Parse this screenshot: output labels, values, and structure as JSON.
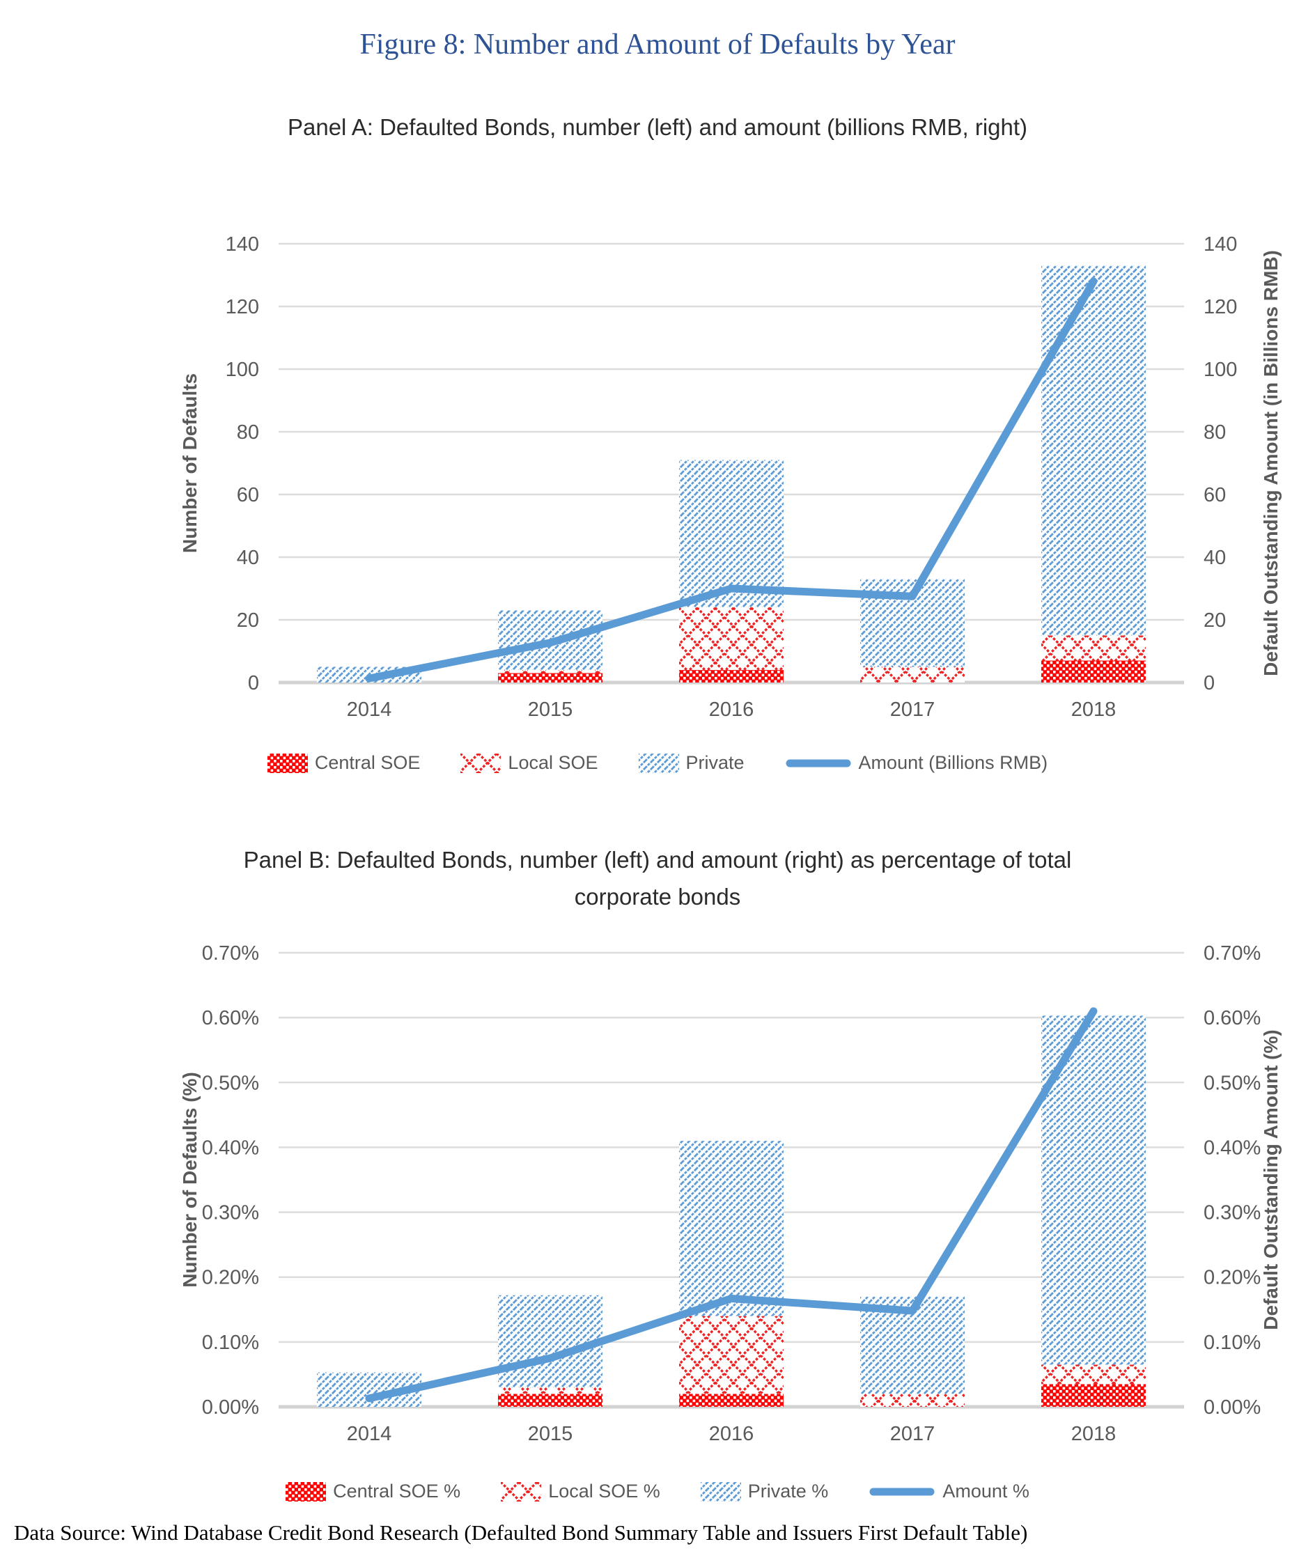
{
  "figure_title": "Figure 8: Number and Amount of Defaults by Year",
  "source_note": "Data Source: Wind Database Credit Bond Research (Defaulted Bond Summary Table and Issuers First Default Table)",
  "colors": {
    "title_blue": "#2E5395",
    "line_blue": "#5B9BD5",
    "hatch_blue": "#5B9BD5",
    "central_red": "#FF0000",
    "local_red": "#EE2222",
    "grid_gray": "#DCDCDC",
    "axis_text_gray": "#595959"
  },
  "chart_data": [
    {
      "type": "bar",
      "stacked": true,
      "grid": true,
      "legend_position": "bottom",
      "panel_title": "Panel A: Defaulted Bonds, number (left) and amount (billions RMB, right)",
      "categories": [
        "2014",
        "2015",
        "2016",
        "2017",
        "2018"
      ],
      "series": [
        {
          "name": "Central SOE",
          "pattern": "central",
          "values": [
            0,
            3,
            4,
            0,
            7
          ]
        },
        {
          "name": "Local SOE",
          "pattern": "local",
          "values": [
            0,
            1,
            20,
            5,
            8
          ]
        },
        {
          "name": "Private",
          "pattern": "private",
          "values": [
            5,
            19,
            47,
            28,
            118
          ]
        }
      ],
      "bar_totals": [
        5,
        23,
        71,
        33,
        133
      ],
      "line_overlay": {
        "name": "Amount (Billions RMB)",
        "values": [
          1.3,
          12.7,
          30,
          27.5,
          128
        ]
      },
      "xlabel": "",
      "ylabel_left": "Number of Defaults",
      "ylabel_right": "Default Outstanding Amount (in Billions RMB)",
      "ylim": [
        0,
        140
      ],
      "ytick_step": 20,
      "tick_format": "integer",
      "legend": [
        "Central SOE",
        "Local SOE",
        "Private",
        "Amount (Billions RMB)"
      ]
    },
    {
      "type": "bar",
      "stacked": true,
      "grid": true,
      "legend_position": "bottom",
      "panel_title": "Panel B: Defaulted Bonds, number (left) and amount (right) as percentage of total corporate bonds",
      "categories": [
        "2014",
        "2015",
        "2016",
        "2017",
        "2018"
      ],
      "series": [
        {
          "name": "Central SOE %",
          "pattern": "central",
          "values": [
            0,
            0.02,
            0.02,
            0,
            0.035
          ]
        },
        {
          "name": "Local SOE %",
          "pattern": "local",
          "values": [
            0,
            0.01,
            0.12,
            0.02,
            0.03
          ]
        },
        {
          "name": "Private %",
          "pattern": "private",
          "values": [
            0.053,
            0.142,
            0.27,
            0.15,
            0.538
          ]
        }
      ],
      "bar_totals": [
        0.053,
        0.172,
        0.41,
        0.17,
        0.603
      ],
      "line_overlay": {
        "name": "Amount %",
        "values": [
          0.013,
          0.075,
          0.167,
          0.148,
          0.61
        ]
      },
      "xlabel": "",
      "ylabel_left": "Number of Defaults (%)",
      "ylabel_right": "Default Outstanding Amount (%)",
      "ylim": [
        0,
        0.7
      ],
      "ytick_step": 0.1,
      "tick_format": "percent",
      "legend": [
        "Central SOE %",
        "Local SOE %",
        "Private %",
        "Amount %"
      ]
    }
  ]
}
